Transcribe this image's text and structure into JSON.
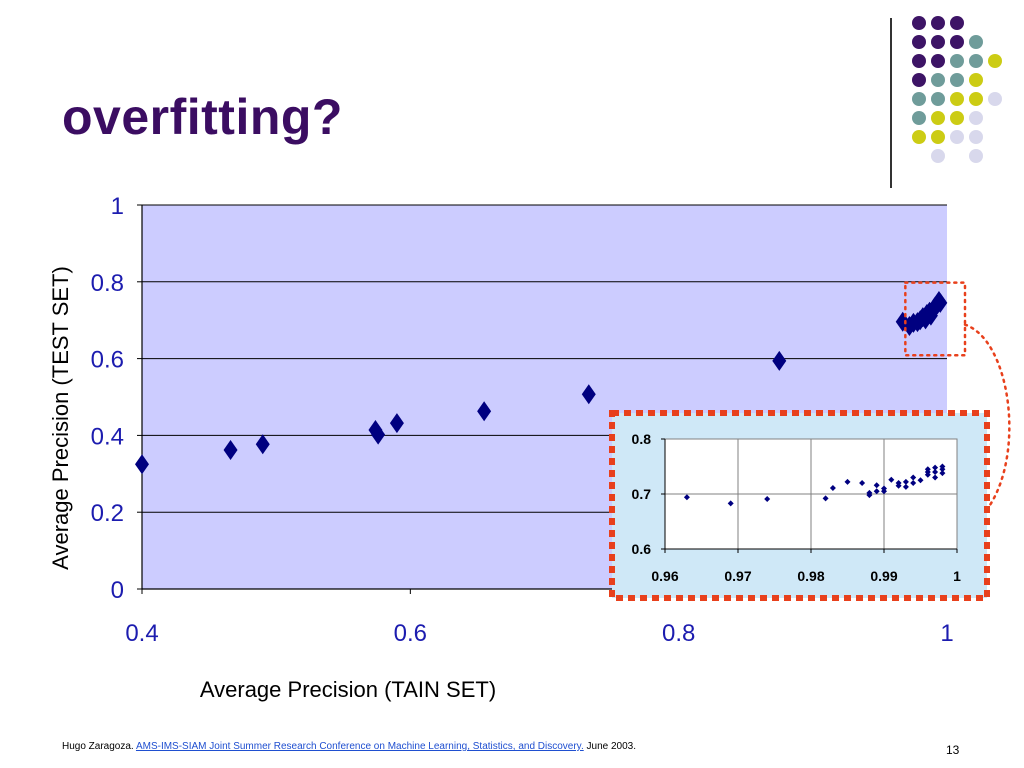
{
  "slide": {
    "title": "overfitting?",
    "page_number": "13",
    "footer": {
      "author": "Hugo Zaragoza.",
      "link_text": "AMS-IMS-SIAM Joint Summer Research Conference on Machine Learning, Statistics, and Discovery.",
      "date": "June 2003."
    }
  },
  "decor": {
    "dot_colors": {
      "purple": "#3d1466",
      "teal": "#6f9c9a",
      "yellow": "#cccc14",
      "lavender": "#d8d8ec"
    },
    "dot_grid": [
      [
        "purple",
        "purple",
        "purple",
        null,
        null
      ],
      [
        "purple",
        "purple",
        "purple",
        "teal",
        null
      ],
      [
        "purple",
        "purple",
        "teal",
        "teal",
        "yellow"
      ],
      [
        "purple",
        "teal",
        "teal",
        "yellow",
        null
      ],
      [
        "teal",
        "teal",
        "yellow",
        "yellow",
        "lavender"
      ],
      [
        "teal",
        "yellow",
        "yellow",
        "lavender",
        null
      ],
      [
        "yellow",
        "yellow",
        "lavender",
        "lavender",
        null
      ],
      [
        null,
        "lavender",
        null,
        "lavender",
        null
      ]
    ]
  },
  "chart_data": [
    {
      "type": "scatter",
      "title": "",
      "xlabel": "Average Precision (TAIN SET)",
      "ylabel": "Average Precision (TEST SET)",
      "xlim": [
        0.4,
        1
      ],
      "ylim": [
        0,
        1
      ],
      "xticks": [
        "0.4",
        "0.6",
        "0.8",
        "1"
      ],
      "yticks": [
        "0",
        "0.2",
        "0.4",
        "0.6",
        "0.8",
        "1"
      ],
      "grid": "horizontal",
      "plot_background": "#ccccff",
      "marker_color": "#000080",
      "points": [
        [
          0.4,
          0.325
        ],
        [
          0.466,
          0.362
        ],
        [
          0.49,
          0.377
        ],
        [
          0.574,
          0.414
        ],
        [
          0.576,
          0.402
        ],
        [
          0.59,
          0.432
        ],
        [
          0.655,
          0.463
        ],
        [
          0.733,
          0.507
        ],
        [
          0.875,
          0.594
        ],
        [
          0.967,
          0.696
        ],
        [
          0.972,
          0.685
        ],
        [
          0.975,
          0.693
        ],
        [
          0.978,
          0.695
        ],
        [
          0.98,
          0.7
        ],
        [
          0.982,
          0.708
        ],
        [
          0.984,
          0.702
        ],
        [
          0.985,
          0.716
        ],
        [
          0.987,
          0.722
        ],
        [
          0.988,
          0.712
        ],
        [
          0.99,
          0.728
        ],
        [
          0.991,
          0.735
        ],
        [
          0.993,
          0.742
        ],
        [
          0.994,
          0.75
        ],
        [
          0.995,
          0.745
        ]
      ],
      "highlight_region": {
        "xlim": [
          0.96,
          1
        ],
        "ylim": [
          0.64,
          0.79
        ]
      }
    },
    {
      "type": "scatter",
      "title": "",
      "xlabel": "",
      "ylabel": "",
      "xlim": [
        0.96,
        1
      ],
      "ylim": [
        0.6,
        0.8
      ],
      "xticks": [
        "0.96",
        "0.97",
        "0.98",
        "0.99",
        "1"
      ],
      "yticks": [
        "0.6",
        "0.7",
        "0.8"
      ],
      "grid": "both",
      "plot_background": "#ffffff",
      "marker_color": "#000080",
      "points": [
        [
          0.963,
          0.694
        ],
        [
          0.969,
          0.683
        ],
        [
          0.974,
          0.691
        ],
        [
          0.982,
          0.692
        ],
        [
          0.983,
          0.711
        ],
        [
          0.985,
          0.722
        ],
        [
          0.987,
          0.72
        ],
        [
          0.988,
          0.702
        ],
        [
          0.988,
          0.698
        ],
        [
          0.989,
          0.705
        ],
        [
          0.989,
          0.716
        ],
        [
          0.99,
          0.71
        ],
        [
          0.99,
          0.705
        ],
        [
          0.991,
          0.726
        ],
        [
          0.992,
          0.72
        ],
        [
          0.992,
          0.715
        ],
        [
          0.993,
          0.722
        ],
        [
          0.993,
          0.713
        ],
        [
          0.994,
          0.73
        ],
        [
          0.994,
          0.72
        ],
        [
          0.995,
          0.725
        ],
        [
          0.996,
          0.735
        ],
        [
          0.996,
          0.74
        ],
        [
          0.996,
          0.745
        ],
        [
          0.997,
          0.73
        ],
        [
          0.997,
          0.74
        ],
        [
          0.997,
          0.748
        ],
        [
          0.998,
          0.738
        ],
        [
          0.998,
          0.745
        ],
        [
          0.998,
          0.75
        ]
      ]
    }
  ]
}
